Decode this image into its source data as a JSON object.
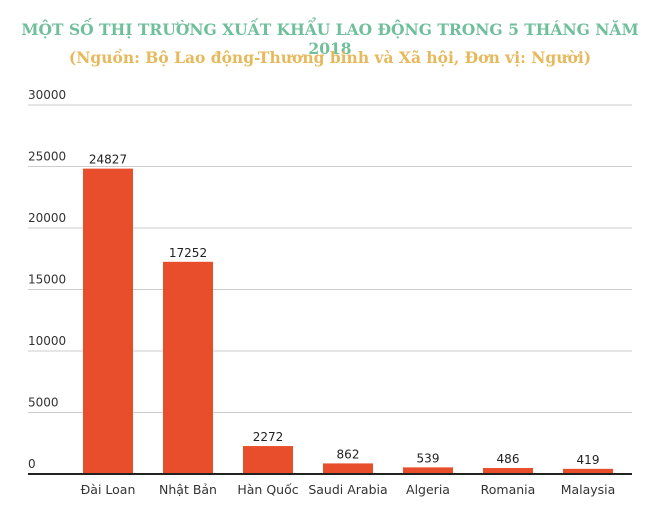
{
  "chart_data": {
    "type": "bar",
    "title": "MỘT SỐ THỊ TRƯỜNG XUẤT KHẨU LAO ĐỘNG TRONG 5 THÁNG NĂM 2018",
    "subtitle": "(Nguồn: Bộ Lao động-Thương binh và Xã hội, Đơn vị: Người)",
    "categories": [
      "Đài Loan",
      "Nhật Bản",
      "Hàn Quốc",
      "Saudi Arabia",
      "Algeria",
      "Romania",
      "Malaysia"
    ],
    "values": [
      24827,
      17252,
      2272,
      862,
      539,
      486,
      419
    ],
    "y_ticks": [
      0,
      5000,
      10000,
      15000,
      20000,
      25000,
      30000
    ],
    "ylim": [
      0,
      30000
    ],
    "grid": true,
    "legend": "none",
    "bar_color": "#e84e2c",
    "gridline_color": "#cccccc",
    "axis_color": "#222222"
  }
}
